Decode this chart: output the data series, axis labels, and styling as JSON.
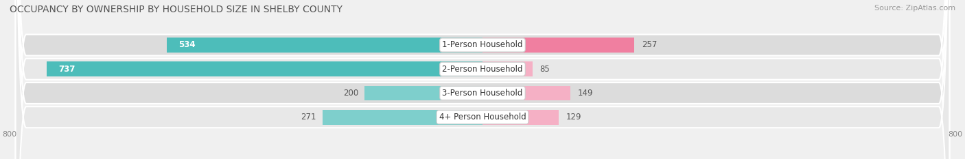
{
  "title": "OCCUPANCY BY OWNERSHIP BY HOUSEHOLD SIZE IN SHELBY COUNTY",
  "source": "Source: ZipAtlas.com",
  "categories": [
    "1-Person Household",
    "2-Person Household",
    "3-Person Household",
    "4+ Person Household"
  ],
  "owner_values": [
    534,
    737,
    200,
    271
  ],
  "renter_values": [
    257,
    85,
    149,
    129
  ],
  "owner_color": "#4dbdba",
  "owner_color_light": "#7ecfcc",
  "renter_color": "#f07fa0",
  "renter_color_light": "#f5b0c5",
  "row_bg_color_dark": "#dcdcdc",
  "row_bg_color_light": "#e8e8e8",
  "fig_bg_color": "#f0f0f0",
  "axis_max": 800,
  "axis_min": -800,
  "title_fontsize": 10,
  "source_fontsize": 8,
  "label_fontsize": 8.5,
  "bar_label_fontsize": 8.5,
  "legend_fontsize": 8.5,
  "axis_label_fontsize": 8
}
